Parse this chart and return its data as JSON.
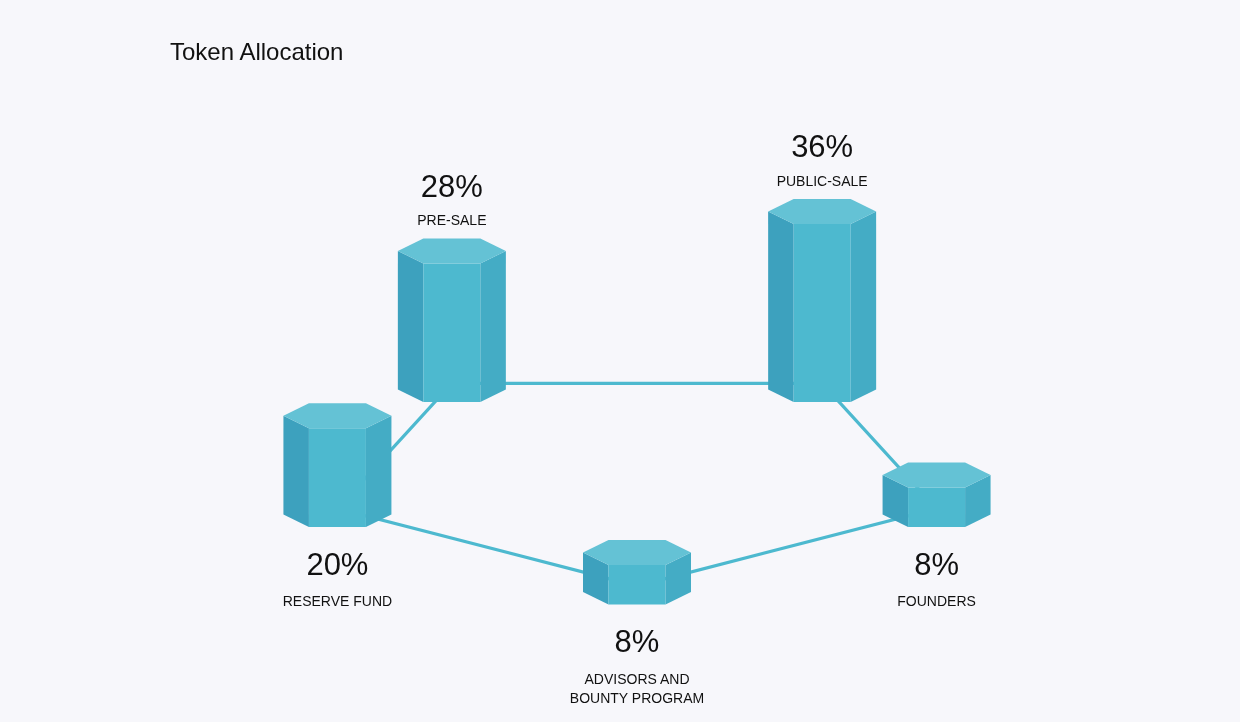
{
  "chart_data": {
    "type": "other",
    "title": "Token Allocation",
    "categories": [
      "RESERVE FUND",
      "PRE-SALE",
      "ADVISORS AND BOUNTY PROGRAM",
      "PUBLIC-SALE",
      "FOUNDERS"
    ],
    "values": [
      20,
      28,
      8,
      36,
      8
    ],
    "value_labels": [
      "20%",
      "28%",
      "8%",
      "36%",
      "8%"
    ],
    "color": "#4db9cf"
  }
}
